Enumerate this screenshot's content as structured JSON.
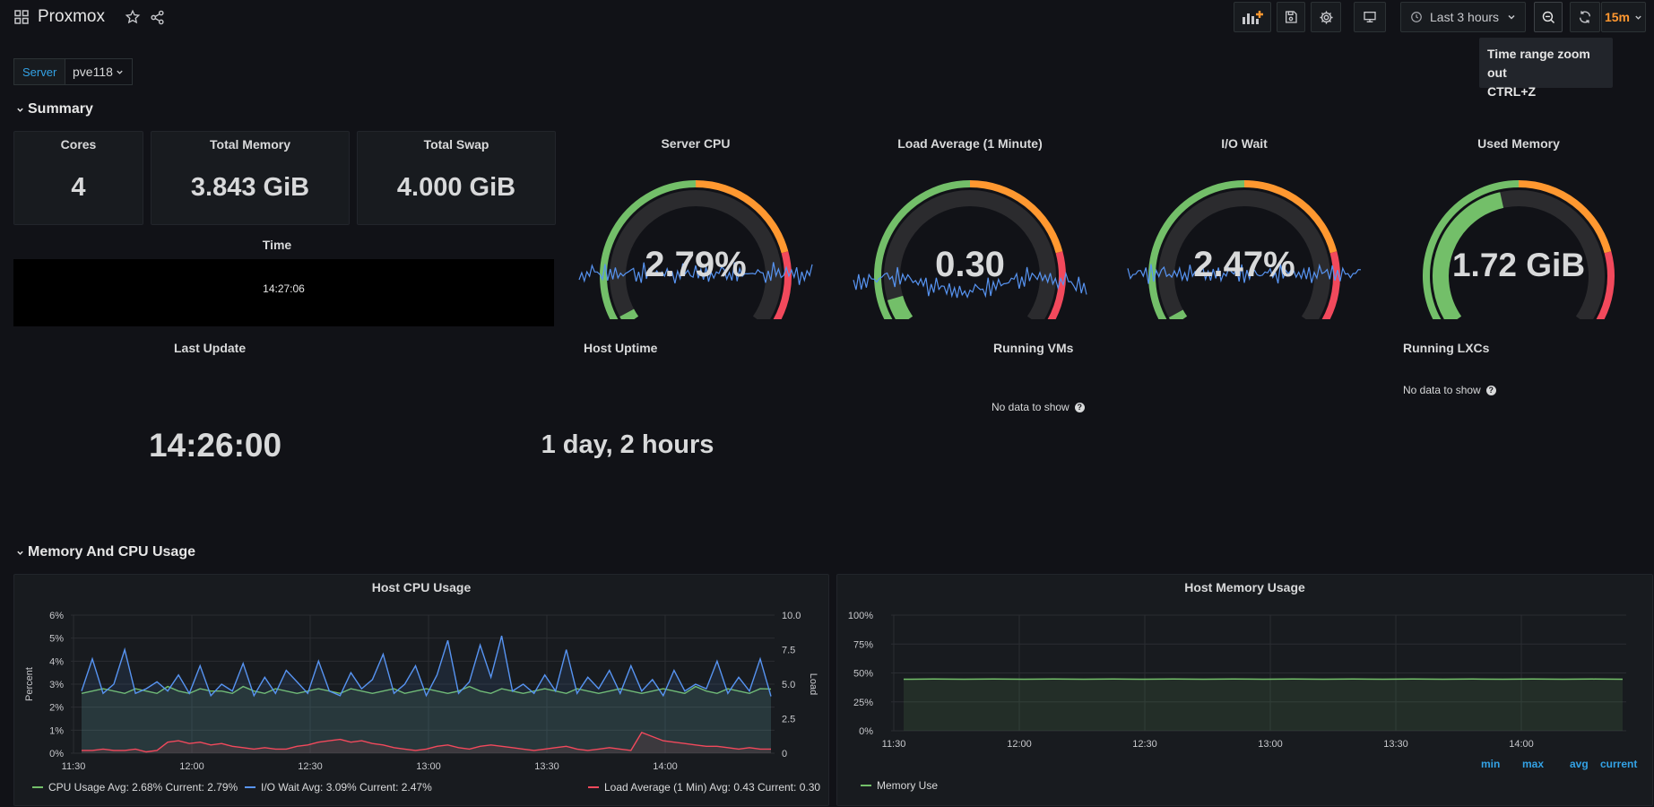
{
  "dashboard": {
    "title": "Proxmox",
    "time_range": "Last 3 hours",
    "refresh": "15m",
    "tooltip": {
      "line1": "Time range zoom out",
      "line2": "CTRL+Z"
    }
  },
  "variables": {
    "label": "Server",
    "value": "pve118"
  },
  "rows": {
    "summary": "Summary",
    "memcpu": "Memory And CPU Usage"
  },
  "stats": {
    "cores": {
      "title": "Cores",
      "value": "4"
    },
    "total_memory": {
      "title": "Total Memory",
      "value": "3.843 GiB"
    },
    "total_swap": {
      "title": "Total Swap",
      "value": "4.000 GiB"
    },
    "time": {
      "title": "Time",
      "value": "14:27:06"
    },
    "last_update": {
      "title": "Last Update",
      "value": "14:26:00"
    },
    "host_uptime": {
      "title": "Host Uptime",
      "value": "1 day, 2 hours"
    },
    "running_vms": {
      "title": "Running VMs",
      "value": "No data to show"
    },
    "running_lxcs": {
      "title": "Running LXCs",
      "value": "No data to show"
    }
  },
  "gauges": [
    {
      "title": "Server CPU",
      "value": "2.79%",
      "fraction": 0.028
    },
    {
      "title": "Load Average (1 Minute)",
      "value": "0.30",
      "fraction": 0.075
    },
    {
      "title": "I/O Wait",
      "value": "2.47%",
      "fraction": 0.025
    },
    {
      "title": "Used Memory",
      "value": "1.72 GiB",
      "fraction": 0.45
    }
  ],
  "colors": {
    "green": "#73bf69",
    "orange": "#ff9830",
    "red": "#f2495c",
    "blue": "#5794f2",
    "bg": "#111217",
    "panel": "#181b1f"
  },
  "cpu_panel": {
    "title": "Host CPU Usage",
    "legend": {
      "cpu": "CPU Usage  Avg: 2.68%  Current: 2.79%",
      "io": "I/O Wait  Avg: 3.09%  Current: 2.47%",
      "load": "Load Average (1 Min)  Avg: 0.43  Current: 0.30"
    }
  },
  "mem_panel": {
    "title": "Host Memory Usage",
    "legend": {
      "series": "Memory Use",
      "min": "min",
      "max": "max",
      "avg": "avg",
      "current": "current"
    }
  },
  "chart_data": [
    {
      "type": "line",
      "title": "Host CPU Usage",
      "ylabel": "Percent",
      "y2label": "Load",
      "x_ticks": [
        "11:30",
        "12:00",
        "12:30",
        "13:00",
        "13:30",
        "14:00"
      ],
      "y_ticks": [
        "0%",
        "1%",
        "2%",
        "3%",
        "4%",
        "5%",
        "6%"
      ],
      "y2_ticks": [
        "0",
        "2.5",
        "5.0",
        "7.5",
        "10.0"
      ],
      "ylim": [
        0,
        6
      ],
      "y2lim": [
        0,
        10
      ],
      "series": [
        {
          "name": "CPU Usage",
          "axis": "left",
          "values": [
            2.6,
            2.7,
            2.8,
            2.7,
            2.6,
            2.8,
            2.7,
            2.6,
            2.9,
            2.7,
            2.6,
            2.8,
            2.7,
            2.7,
            2.6,
            2.9,
            2.7,
            2.6,
            2.8,
            2.7,
            2.6,
            2.7,
            2.8,
            2.7,
            2.6,
            2.8,
            2.7,
            2.6,
            2.7,
            2.8,
            2.6,
            2.7,
            2.8,
            2.7,
            2.6,
            2.7,
            2.9,
            2.7,
            2.6,
            2.8,
            2.7,
            2.6,
            2.7,
            2.8,
            2.7,
            2.6,
            2.8,
            2.7,
            2.6,
            2.7,
            2.8,
            2.7,
            2.6,
            2.7,
            2.8,
            2.7,
            2.6,
            2.9,
            2.7,
            2.6,
            2.8,
            2.7,
            2.6,
            2.8,
            2.79
          ]
        },
        {
          "name": "I/O Wait",
          "axis": "left",
          "values": [
            2.7,
            4.1,
            2.6,
            3.0,
            4.5,
            2.6,
            2.8,
            3.1,
            2.7,
            3.4,
            2.6,
            3.8,
            2.5,
            3.0,
            2.7,
            3.9,
            2.5,
            3.3,
            2.6,
            3.6,
            3.1,
            2.6,
            4.0,
            2.7,
            2.5,
            3.5,
            2.8,
            3.2,
            4.3,
            2.6,
            3.0,
            3.8,
            2.5,
            3.4,
            4.9,
            2.6,
            3.1,
            4.7,
            3.3,
            5.1,
            2.7,
            3.0,
            2.6,
            3.4,
            2.7,
            4.5,
            2.6,
            3.3,
            2.8,
            3.6,
            2.6,
            3.8,
            2.7,
            3.2,
            2.5,
            3.6,
            2.7,
            3.0,
            2.8,
            4.0,
            2.6,
            3.3,
            2.7,
            4.1,
            2.47
          ]
        },
        {
          "name": "Load Average (1 Min)",
          "axis": "right",
          "values": [
            0.2,
            0.2,
            0.3,
            0.2,
            0.2,
            0.3,
            0.1,
            0.2,
            0.8,
            0.9,
            0.7,
            0.8,
            0.6,
            0.7,
            0.5,
            0.4,
            0.3,
            0.4,
            0.3,
            0.3,
            0.5,
            0.6,
            0.8,
            0.9,
            1.0,
            0.8,
            0.9,
            0.7,
            0.6,
            0.4,
            0.3,
            0.2,
            0.3,
            0.5,
            0.6,
            0.4,
            0.3,
            0.5,
            0.6,
            0.5,
            0.4,
            0.3,
            0.2,
            0.3,
            0.4,
            0.5,
            0.3,
            0.2,
            0.3,
            0.4,
            0.3,
            0.2,
            1.5,
            1.2,
            0.9,
            0.8,
            0.7,
            0.6,
            0.5,
            0.5,
            0.4,
            0.3,
            0.4,
            0.3,
            0.3
          ]
        }
      ]
    },
    {
      "type": "area",
      "title": "Host Memory Usage",
      "x_ticks": [
        "11:30",
        "12:00",
        "12:30",
        "13:00",
        "13:30",
        "14:00"
      ],
      "y_ticks": [
        "0%",
        "25%",
        "50%",
        "75%",
        "100%"
      ],
      "ylim": [
        0,
        100
      ],
      "series": [
        {
          "name": "Memory Use",
          "values": [
            44.6,
            44.7,
            44.6,
            44.7,
            44.6,
            44.7,
            44.6,
            44.7,
            44.6,
            44.7,
            44.6,
            44.7,
            44.6,
            44.7,
            44.6,
            44.7,
            44.6,
            44.7,
            44.6,
            44.7,
            44.6,
            44.7,
            44.6,
            44.7,
            44.6
          ]
        }
      ]
    }
  ]
}
